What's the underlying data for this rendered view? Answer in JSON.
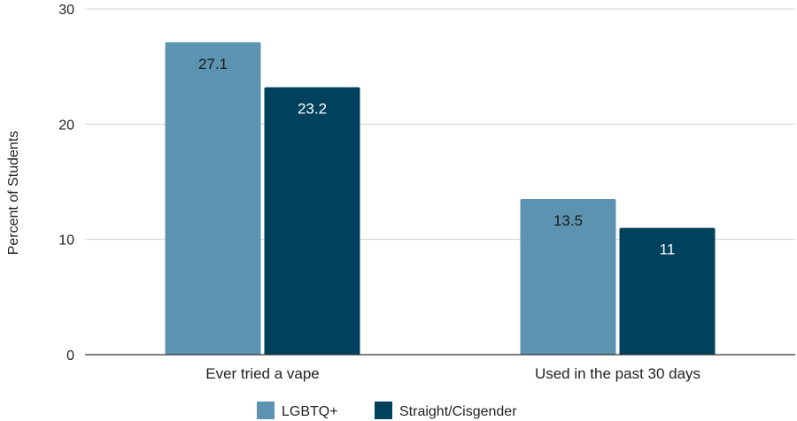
{
  "chart_data": {
    "type": "bar",
    "title": "",
    "xlabel": "",
    "ylabel": "Percent of Students",
    "ylim": [
      0,
      30
    ],
    "yticks": [
      0,
      10,
      20,
      30
    ],
    "grid": true,
    "legend_position": "bottom",
    "categories": [
      "Ever tried a vape",
      "Used in the past 30 days"
    ],
    "series": [
      {
        "name": "LGBTQ+",
        "color": "#5b93b1",
        "label_color": "#1a1a1a",
        "values": [
          27.1,
          13.5
        ]
      },
      {
        "name": "Straight/Cisgender",
        "color": "#00425e",
        "label_color": "#ffffff",
        "values": [
          23.2,
          11
        ]
      }
    ]
  }
}
